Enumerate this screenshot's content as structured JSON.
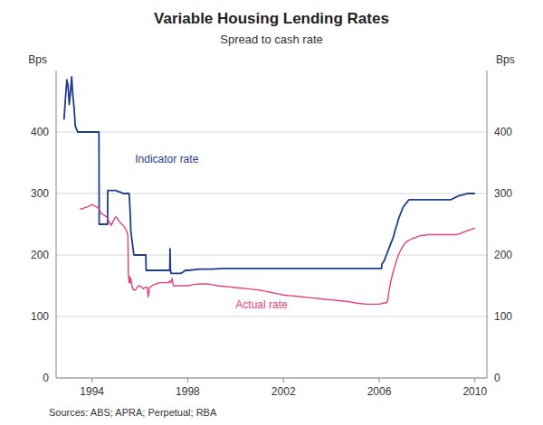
{
  "chart_data": {
    "type": "line",
    "title": "Variable Housing Lending Rates",
    "subtitle": "Spread to cash rate",
    "ylabel": "Bps",
    "y2label": "Bps",
    "source": "Sources: ABS; APRA; Perpetual; RBA",
    "xlim": [
      1992.5,
      2010.5
    ],
    "xticks": [
      1994,
      1998,
      2002,
      2006,
      2010
    ],
    "ylim": [
      0,
      500
    ],
    "yticks": [
      0,
      100,
      200,
      300,
      400
    ],
    "y2lim": [
      0,
      500
    ],
    "y2ticks": [
      0,
      100,
      200,
      300,
      400
    ],
    "grid": true,
    "annotations": [
      {
        "text": "Indicator rate",
        "x": 1995.8,
        "y": 355,
        "color": "#1f3d8c"
      },
      {
        "text": "Actual rate",
        "x": 2000.0,
        "y": 118,
        "color": "#e8417a"
      }
    ],
    "series": [
      {
        "color": "#1f3d8c",
        "x": [
          1992.83,
          1992.9,
          1992.95,
          1993.0,
          1993.05,
          1993.1,
          1993.15,
          1993.18,
          1993.2,
          1993.25,
          1993.3,
          1993.4,
          1993.5,
          1993.6,
          1993.7,
          1993.8,
          1993.9,
          1994.0,
          1994.1,
          1994.2,
          1994.29,
          1994.3,
          1994.31,
          1994.4,
          1994.5,
          1994.6,
          1994.65,
          1994.66,
          1994.7,
          1994.8,
          1994.9,
          1995.0,
          1995.1,
          1995.2,
          1995.3,
          1995.4,
          1995.5,
          1995.55,
          1995.56,
          1995.6,
          1995.62,
          1995.65,
          1995.7,
          1995.75,
          1995.8,
          1995.9,
          1996.0,
          1996.1,
          1996.2,
          1996.25,
          1996.26,
          1996.3,
          1996.4,
          1996.5,
          1996.6,
          1996.7,
          1996.8,
          1996.9,
          1997.0,
          1997.1,
          1997.2,
          1997.25,
          1997.26,
          1997.28,
          1997.3,
          1997.4,
          1997.5,
          1997.6,
          1997.7,
          1997.8,
          1997.9,
          1998.0,
          1998.5,
          1999.0,
          1999.5,
          2000.0,
          2000.5,
          2001.0,
          2001.5,
          2002.0,
          2002.5,
          2003.0,
          2003.5,
          2004.0,
          2004.5,
          2005.0,
          2005.5,
          2006.0,
          2006.1,
          2006.11,
          2006.2,
          2006.3,
          2006.4,
          2006.5,
          2006.6,
          2006.65,
          2006.7,
          2006.75,
          2006.8,
          2006.85,
          2006.9,
          2006.95,
          2007.0,
          2007.05,
          2007.1,
          2007.15,
          2007.2,
          2007.25,
          2007.3,
          2007.35,
          2007.4,
          2007.5,
          2007.6,
          2007.7,
          2007.8,
          2007.9,
          2008.0,
          2008.1,
          2008.2,
          2008.3,
          2008.4,
          2008.5,
          2008.6,
          2008.7,
          2008.8,
          2008.9,
          2009.0,
          2009.1,
          2009.2,
          2009.3,
          2009.4,
          2009.5,
          2009.6,
          2009.7,
          2009.8,
          2009.9,
          2010.0
        ],
        "values": [
          420,
          460,
          485,
          475,
          445,
          465,
          490,
          470,
          460,
          440,
          410,
          400,
          400,
          400,
          400,
          400,
          400,
          400,
          400,
          400,
          400,
          250,
          250,
          250,
          250,
          250,
          250,
          305,
          305,
          305,
          305,
          305,
          303,
          302,
          300,
          300,
          300,
          300,
          295,
          265,
          240,
          230,
          215,
          200,
          200,
          200,
          200,
          200,
          200,
          200,
          175,
          175,
          175,
          175,
          175,
          175,
          175,
          175,
          175,
          175,
          175,
          175,
          210,
          175,
          170,
          170,
          170,
          170,
          170,
          172,
          175,
          175,
          177,
          177,
          178,
          178,
          178,
          178,
          178,
          178,
          178,
          178,
          178,
          178,
          178,
          178,
          178,
          178,
          178,
          185,
          190,
          200,
          210,
          220,
          230,
          238,
          245,
          250,
          258,
          263,
          268,
          273,
          278,
          280,
          283,
          285,
          288,
          290,
          290,
          290,
          290,
          290,
          290,
          290,
          290,
          290,
          290,
          290,
          290,
          290,
          290,
          290,
          290,
          290,
          290,
          290,
          290,
          292,
          294,
          296,
          297,
          298,
          299,
          300,
          300,
          300,
          300
        ]
      },
      {
        "color": "#e8417a",
        "x": [
          1993.5,
          1993.6,
          1993.7,
          1993.8,
          1993.9,
          1994.0,
          1994.1,
          1994.2,
          1994.3,
          1994.35,
          1994.4,
          1994.5,
          1994.6,
          1994.65,
          1994.7,
          1994.75,
          1994.8,
          1994.85,
          1994.9,
          1994.95,
          1995.0,
          1995.05,
          1995.1,
          1995.2,
          1995.3,
          1995.4,
          1995.45,
          1995.5,
          1995.52,
          1995.55,
          1995.57,
          1995.6,
          1995.62,
          1995.65,
          1995.68,
          1995.7,
          1995.75,
          1995.8,
          1995.85,
          1995.9,
          1995.95,
          1996.0,
          1996.05,
          1996.1,
          1996.15,
          1996.2,
          1996.3,
          1996.35,
          1996.4,
          1996.45,
          1996.5,
          1996.6,
          1996.7,
          1996.8,
          1996.9,
          1997.0,
          1997.1,
          1997.2,
          1997.25,
          1997.3,
          1997.35,
          1997.4,
          1997.5,
          1997.6,
          1997.7,
          1997.8,
          1997.9,
          1998.0,
          1998.25,
          1998.5,
          1998.75,
          1999.0,
          1999.25,
          1999.5,
          1999.75,
          2000.0,
          2000.25,
          2000.5,
          2000.75,
          2001.0,
          2001.25,
          2001.5,
          2001.75,
          2002.0,
          2002.25,
          2002.5,
          2002.75,
          2003.0,
          2003.25,
          2003.5,
          2003.75,
          2004.0,
          2004.25,
          2004.5,
          2004.75,
          2005.0,
          2005.25,
          2005.5,
          2005.75,
          2006.0,
          2006.1,
          2006.2,
          2006.3,
          2006.35,
          2006.4,
          2006.5,
          2006.6,
          2006.7,
          2006.8,
          2006.9,
          2007.0,
          2007.1,
          2007.2,
          2007.3,
          2007.4,
          2007.5,
          2007.6,
          2007.7,
          2007.8,
          2007.9,
          2008.0,
          2008.1,
          2008.2,
          2008.3,
          2008.4,
          2008.5,
          2008.6,
          2008.7,
          2008.8,
          2008.9,
          2009.0,
          2009.1,
          2009.2,
          2009.3,
          2009.4,
          2009.5,
          2009.6,
          2009.7,
          2009.8,
          2009.9,
          2010.0
        ],
        "values": [
          275,
          275,
          277,
          278,
          280,
          282,
          280,
          278,
          275,
          270,
          267,
          265,
          262,
          260,
          255,
          252,
          248,
          252,
          256,
          260,
          262,
          260,
          257,
          252,
          248,
          243,
          238,
          232,
          170,
          155,
          165,
          155,
          162,
          155,
          148,
          145,
          143,
          143,
          145,
          148,
          150,
          150,
          148,
          147,
          145,
          147,
          148,
          132,
          147,
          148,
          150,
          152,
          153,
          155,
          155,
          155,
          155,
          155,
          158,
          155,
          162,
          150,
          150,
          150,
          150,
          150,
          150,
          150,
          152,
          153,
          153,
          152,
          150,
          149,
          148,
          147,
          146,
          145,
          144,
          143,
          141,
          139,
          137,
          135,
          134,
          133,
          132,
          131,
          130,
          129,
          128,
          127,
          126,
          125,
          124,
          122,
          121,
          120,
          120,
          120,
          121,
          122,
          122,
          125,
          140,
          160,
          175,
          188,
          200,
          208,
          215,
          220,
          223,
          225,
          227,
          228,
          230,
          231,
          232,
          232,
          233,
          233,
          233,
          233,
          233,
          233,
          233,
          233,
          233,
          233,
          233,
          233,
          233,
          234,
          235,
          237,
          238,
          240,
          241,
          242,
          244
        ]
      }
    ]
  }
}
